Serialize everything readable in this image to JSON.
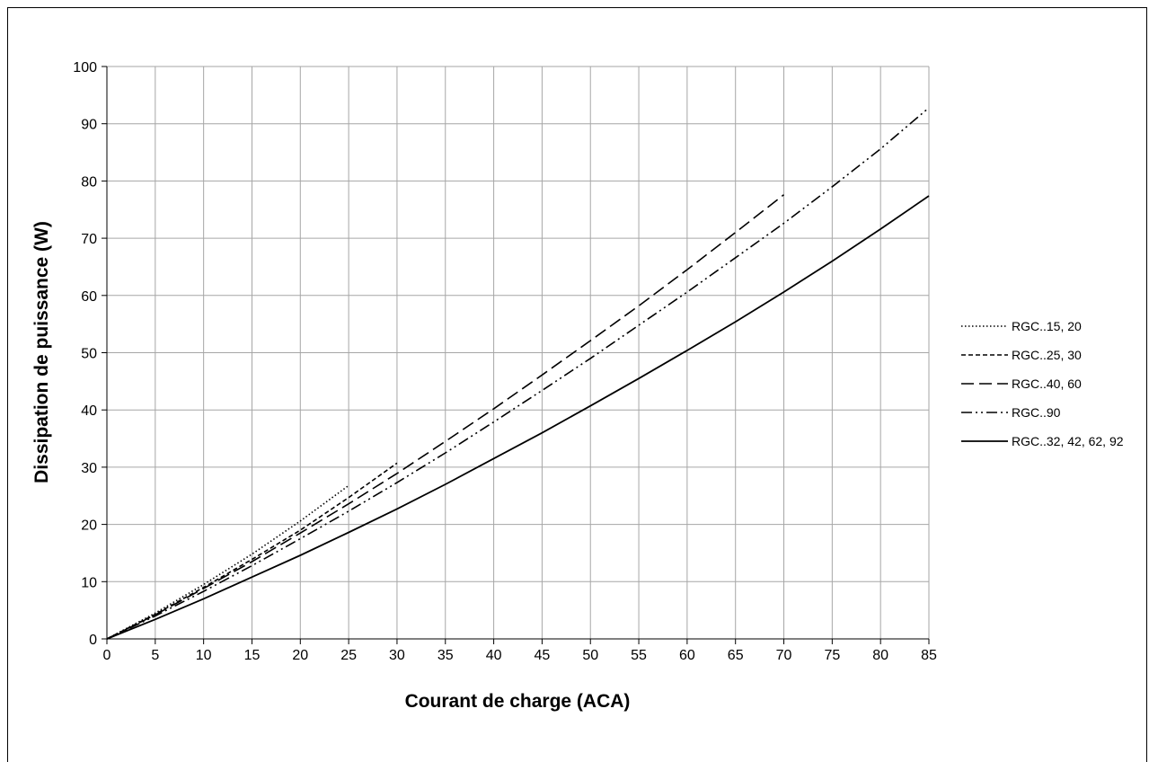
{
  "chart_data": {
    "type": "line",
    "title": "",
    "xlabel": "Courant de charge (ACA)",
    "ylabel": "Dissipation de puissance (W)",
    "xlim": [
      0,
      85
    ],
    "ylim": [
      0,
      100
    ],
    "xticks": [
      0,
      5,
      10,
      15,
      20,
      25,
      30,
      35,
      40,
      45,
      50,
      55,
      60,
      65,
      70,
      75,
      80,
      85
    ],
    "yticks": [
      0,
      10,
      20,
      30,
      40,
      50,
      60,
      70,
      80,
      90,
      100
    ],
    "grid": true,
    "legend_position": "right",
    "series": [
      {
        "name": "RGC..15, 20",
        "style": "dotted",
        "color": "#000000",
        "x": [
          0,
          5,
          10,
          15,
          20,
          25
        ],
        "y": [
          0,
          4.5,
          9.5,
          14.8,
          20.6,
          26.8
        ]
      },
      {
        "name": "RGC..25, 30",
        "style": "dashed",
        "color": "#000000",
        "x": [
          0,
          5,
          10,
          15,
          20,
          25,
          30
        ],
        "y": [
          0,
          4.3,
          9.0,
          13.9,
          19.0,
          24.7,
          30.7
        ]
      },
      {
        "name": "RGC..40, 60",
        "style": "long-dash",
        "color": "#000000",
        "x": [
          0,
          5,
          10,
          15,
          20,
          25,
          30,
          35,
          40,
          45,
          50,
          55,
          60,
          65,
          70
        ],
        "y": [
          0,
          4.2,
          8.8,
          13.5,
          18.5,
          23.6,
          28.9,
          34.5,
          40.2,
          46.1,
          52.1,
          58.2,
          64.5,
          71.0,
          77.6
        ]
      },
      {
        "name": "RGC..90",
        "style": "dash-dot-dot",
        "color": "#000000",
        "x": [
          0,
          5,
          10,
          15,
          20,
          25,
          30,
          35,
          40,
          45,
          50,
          55,
          60,
          65,
          70,
          75,
          80,
          85
        ],
        "y": [
          0,
          4.0,
          8.3,
          12.8,
          17.5,
          22.3,
          27.3,
          32.5,
          37.9,
          43.4,
          49.0,
          54.8,
          60.6,
          66.6,
          72.6,
          79.0,
          85.6,
          92.8
        ]
      },
      {
        "name": "RGC..32, 42, 62, 92",
        "style": "solid",
        "color": "#000000",
        "x": [
          0,
          5,
          10,
          15,
          20,
          25,
          30,
          35,
          40,
          45,
          50,
          55,
          60,
          65,
          70,
          75,
          80,
          85
        ],
        "y": [
          0,
          3.4,
          7.0,
          10.8,
          14.6,
          18.6,
          22.7,
          27.0,
          31.5,
          36.0,
          40.7,
          45.5,
          50.4,
          55.4,
          60.6,
          66.0,
          71.6,
          77.4
        ]
      }
    ]
  }
}
